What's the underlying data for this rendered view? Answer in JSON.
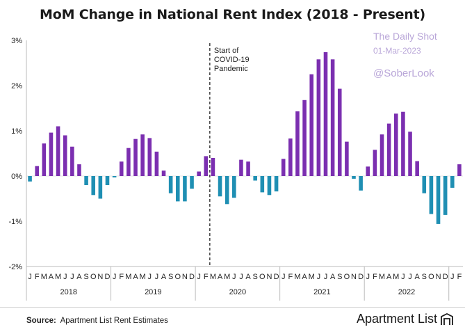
{
  "title": "MoM Change in National Rent Index (2018 - Present)",
  "watermark": {
    "line1": "The Daily Shot",
    "line2": "01-Mar-2023",
    "line3": "@SoberLook"
  },
  "source_label": "Source:",
  "source_text": "Apartment List Rent Estimates",
  "brand": "Apartment List",
  "chart_data": {
    "type": "bar",
    "ylim": [
      -2,
      3
    ],
    "yticks": [
      "-2%",
      "-1%",
      "0%",
      "1%",
      "2%",
      "3%"
    ],
    "years": [
      "2018",
      "2019",
      "2020",
      "2021",
      "2022"
    ],
    "month_labels": [
      "J",
      "F",
      "M",
      "A",
      "M",
      "J",
      "J",
      "A",
      "S",
      "O",
      "N",
      "D"
    ],
    "values": [
      -0.12,
      0.22,
      0.72,
      0.96,
      1.1,
      0.9,
      0.65,
      0.26,
      -0.2,
      -0.42,
      -0.5,
      -0.2,
      -0.03,
      0.32,
      0.62,
      0.82,
      0.92,
      0.84,
      0.54,
      0.12,
      -0.38,
      -0.56,
      -0.56,
      -0.28,
      0.1,
      0.44,
      0.4,
      -0.45,
      -0.62,
      -0.48,
      0.36,
      0.32,
      -0.1,
      -0.36,
      -0.42,
      -0.34,
      0.38,
      0.83,
      1.43,
      1.68,
      2.25,
      2.58,
      2.74,
      2.58,
      1.93,
      0.76,
      -0.06,
      -0.32,
      0.21,
      0.58,
      0.92,
      1.16,
      1.38,
      1.42,
      0.98,
      0.33,
      -0.38,
      -0.84,
      -1.06,
      -0.86,
      -0.26,
      0.26
    ],
    "extra_months": [
      "J",
      "F"
    ],
    "annotation": {
      "lines": [
        "Start of",
        "COVID-19",
        "Pandemic"
      ]
    },
    "colors": {
      "positive": "#7b2fb0",
      "negative": "#1f8fb3"
    }
  }
}
